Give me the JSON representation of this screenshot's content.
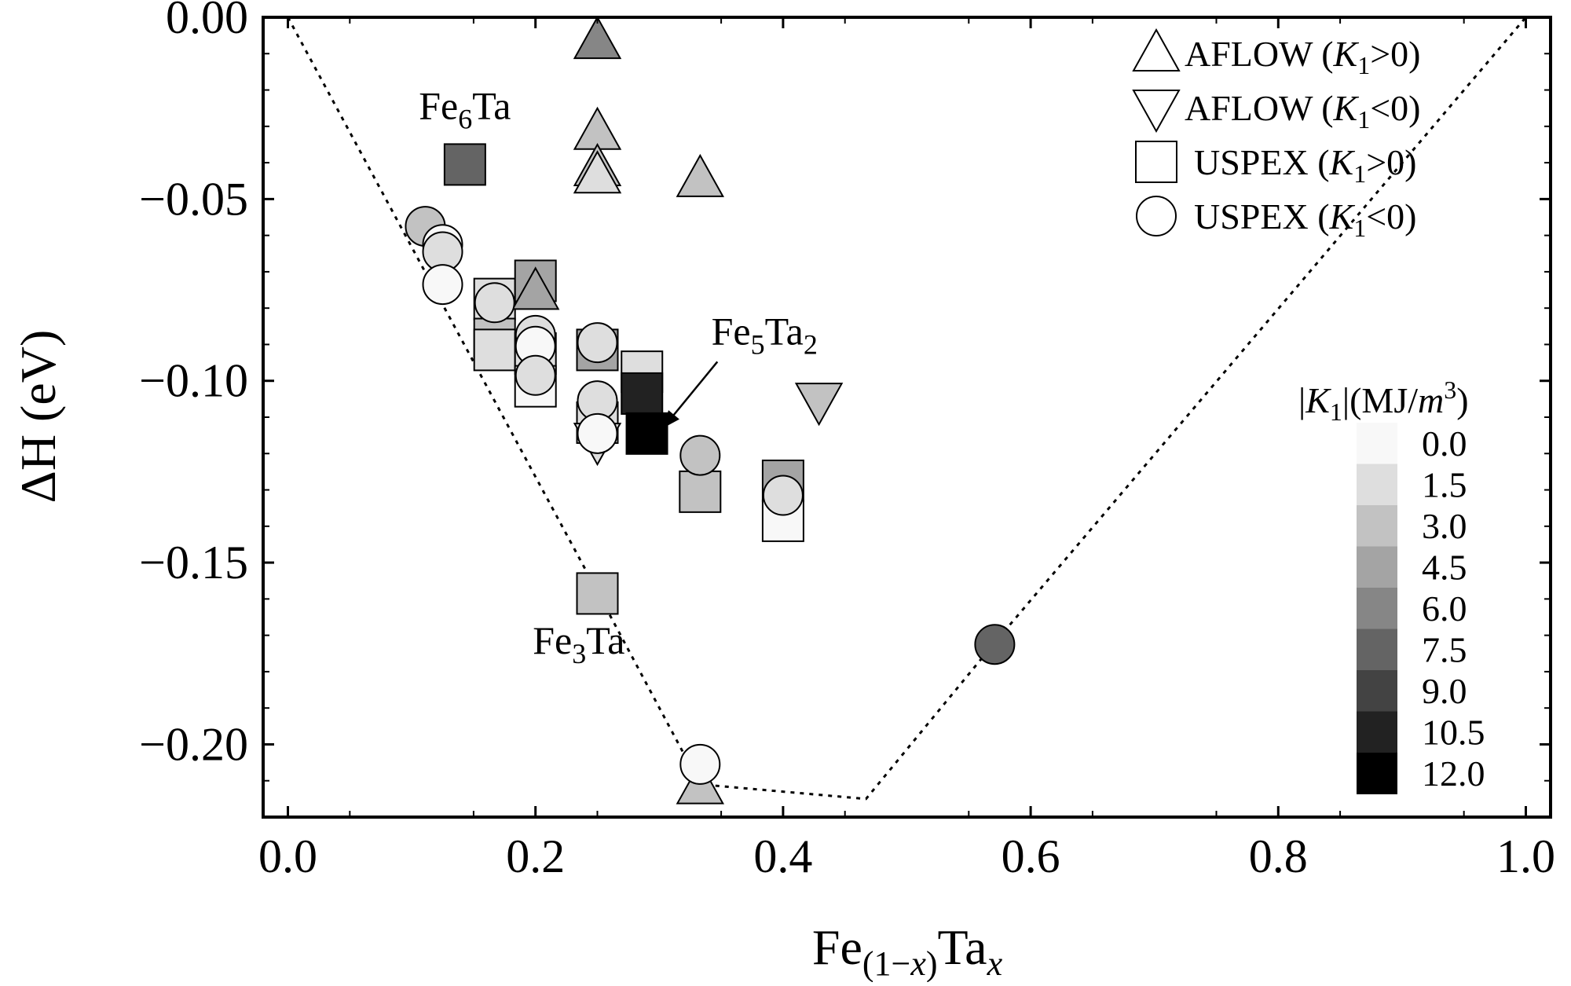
{
  "chart_data": {
    "type": "scatter",
    "title": "",
    "xlabel": "Fe(1−x)Tax",
    "xlabel_parts": {
      "base1": "Fe",
      "sub1": "(1−",
      "sub1_italic": "x",
      "sub1_close": ")",
      "base2": "Ta",
      "sub2": "x"
    },
    "ylabel": "ΔH (eV)",
    "xlim": [
      -0.02,
      1.02
    ],
    "ylim": [
      -0.22,
      0.0
    ],
    "xticks": [
      "0.0",
      "0.2",
      "0.4",
      "0.6",
      "0.8",
      "1.0"
    ],
    "xtick_values": [
      0.0,
      0.2,
      0.4,
      0.6,
      0.8,
      1.0
    ],
    "yticks": [
      "0.00",
      "−0.05",
      "−0.10",
      "−0.15",
      "−0.20"
    ],
    "ytick_values": [
      0.0,
      -0.05,
      -0.1,
      -0.15,
      -0.2
    ],
    "grid": false,
    "legend": {
      "placement": "top-right",
      "entries": [
        {
          "marker": "triangle-up",
          "source": "AFLOW",
          "condition": "K1>0"
        },
        {
          "marker": "triangle-down",
          "source": "AFLOW",
          "condition": "K1<0"
        },
        {
          "marker": "square",
          "source": "USPEX",
          "condition": "K1>0"
        },
        {
          "marker": "circle",
          "source": "USPEX",
          "condition": "K1<0"
        }
      ]
    },
    "colorbar": {
      "title": "|K1|(MJ/m3)",
      "placement": "right",
      "ticks": [
        "0.0",
        "1.5",
        "3.0",
        "4.5",
        "6.0",
        "7.5",
        "9.0",
        "10.5",
        "12.0"
      ],
      "tick_values": [
        0.0,
        1.5,
        3.0,
        4.5,
        6.0,
        7.5,
        9.0,
        10.5,
        12.0
      ],
      "colors": [
        "#f8f8f8",
        "#dedede",
        "#c2c2c2",
        "#a4a4a4",
        "#868686",
        "#646464",
        "#434343",
        "#222222",
        "#000000"
      ]
    },
    "convex_hull": [
      [
        0.0,
        0.0
      ],
      [
        0.25,
        -0.158
      ],
      [
        0.333,
        -0.211
      ],
      [
        0.467,
        -0.215
      ],
      [
        0.571,
        -0.172
      ],
      [
        1.0,
        0.0
      ]
    ],
    "annotations": [
      {
        "label": "Fe6Ta",
        "base1": "Fe",
        "sub1": "6",
        "base2": "Ta",
        "x": 0.143,
        "y": -0.028
      },
      {
        "label": "Fe3Ta",
        "base1": "Fe",
        "sub1": "3",
        "base2": "Ta",
        "x": 0.235,
        "y": -0.175
      },
      {
        "label": "Fe5Ta2",
        "base1": "Fe",
        "sub1": "5",
        "base2": "Ta",
        "sub2": "2",
        "x": 0.385,
        "y": -0.09,
        "arrow_to": [
          0.303,
          -0.113
        ]
      }
    ],
    "series": [
      {
        "name": "AFLOW (K1>0)",
        "marker": "triangle-up",
        "points": [
          {
            "x": 0.25,
            "y": -0.0065,
            "k1": 6.0
          },
          {
            "x": 0.25,
            "y": -0.0315,
            "k1": 2.6
          },
          {
            "x": 0.25,
            "y": -0.0415,
            "k1": 2.6
          },
          {
            "x": 0.25,
            "y": -0.0435,
            "k1": 2.0
          },
          {
            "x": 0.333,
            "y": -0.0445,
            "k1": 3.2
          },
          {
            "x": 0.2,
            "y": -0.0755,
            "k1": 4.2
          },
          {
            "x": 0.333,
            "y": -0.2115,
            "k1": 3.0
          }
        ]
      },
      {
        "name": "AFLOW (K1<0)",
        "marker": "triangle-down",
        "points": [
          {
            "x": 0.429,
            "y": -0.1055,
            "k1": 3.0
          },
          {
            "x": 0.25,
            "y": -0.1165,
            "k1": 0.8
          }
        ]
      },
      {
        "name": "USPEX (K1>0)",
        "marker": "square",
        "points": [
          {
            "x": 0.143,
            "y": -0.0405,
            "k1": 7.5
          },
          {
            "x": 0.167,
            "y": -0.0775,
            "k1": 1.2
          },
          {
            "x": 0.167,
            "y": -0.0885,
            "k1": 2.8
          },
          {
            "x": 0.167,
            "y": -0.0915,
            "k1": 1.0
          },
          {
            "x": 0.2,
            "y": -0.0725,
            "k1": 4.5
          },
          {
            "x": 0.2,
            "y": -0.0925,
            "k1": 1.2
          },
          {
            "x": 0.2,
            "y": -0.1015,
            "k1": 0.6
          },
          {
            "x": 0.25,
            "y": -0.0915,
            "k1": 4.8
          },
          {
            "x": 0.25,
            "y": -0.1115,
            "k1": 1.5
          },
          {
            "x": 0.286,
            "y": -0.0975,
            "k1": 2.0
          },
          {
            "x": 0.286,
            "y": -0.1035,
            "k1": 10.5
          },
          {
            "x": 0.29,
            "y": -0.1145,
            "k1": 12.0
          },
          {
            "x": 0.333,
            "y": -0.1305,
            "k1": 3.2
          },
          {
            "x": 0.4,
            "y": -0.1275,
            "k1": 5.0
          },
          {
            "x": 0.4,
            "y": -0.1385,
            "k1": 0.6
          },
          {
            "x": 0.25,
            "y": -0.1585,
            "k1": 3.0
          }
        ]
      },
      {
        "name": "USPEX (K1<0)",
        "marker": "circle",
        "points": [
          {
            "x": 0.111,
            "y": -0.0575,
            "k1": 3.2
          },
          {
            "x": 0.125,
            "y": -0.0625,
            "k1": 0.5
          },
          {
            "x": 0.125,
            "y": -0.0645,
            "k1": 1.0
          },
          {
            "x": 0.125,
            "y": -0.0735,
            "k1": 0.2
          },
          {
            "x": 0.167,
            "y": -0.0785,
            "k1": 2.0
          },
          {
            "x": 0.2,
            "y": -0.0875,
            "k1": 1.2
          },
          {
            "x": 0.2,
            "y": -0.0905,
            "k1": 0.5
          },
          {
            "x": 0.2,
            "y": -0.0985,
            "k1": 0.8
          },
          {
            "x": 0.25,
            "y": -0.0895,
            "k1": 1.0
          },
          {
            "x": 0.25,
            "y": -0.1055,
            "k1": 2.0
          },
          {
            "x": 0.25,
            "y": -0.1145,
            "k1": 0.6
          },
          {
            "x": 0.333,
            "y": -0.1205,
            "k1": 3.5
          },
          {
            "x": 0.4,
            "y": -0.1315,
            "k1": 1.2
          },
          {
            "x": 0.333,
            "y": -0.2055,
            "k1": 0.2
          },
          {
            "x": 0.571,
            "y": -0.1725,
            "k1": 7.5
          }
        ]
      }
    ]
  }
}
